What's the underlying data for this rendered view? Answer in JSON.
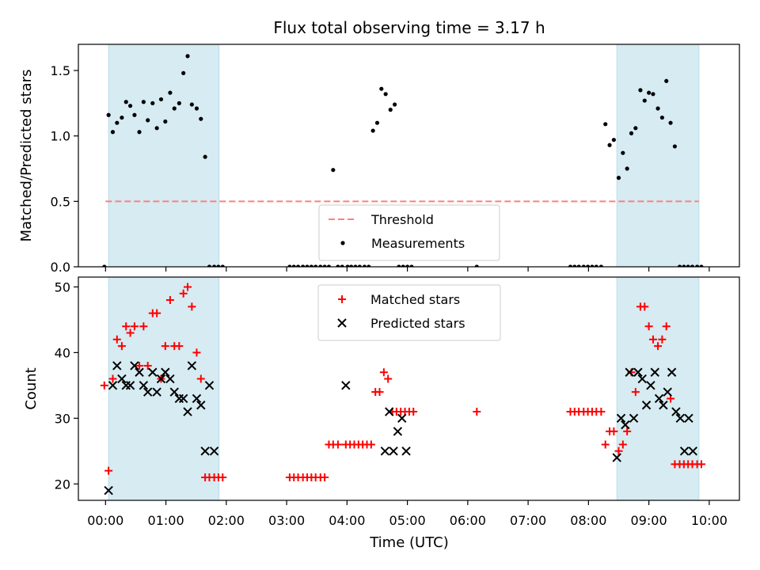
{
  "chart_data": {
    "title": "Flux total observing time = 3.17 h",
    "xlabel": "Time (UTC)",
    "x_ticks": [
      "00:00",
      "01:00",
      "02:00",
      "03:00",
      "04:00",
      "05:00",
      "06:00",
      "07:00",
      "08:00",
      "09:00",
      "10:00"
    ],
    "x_range_hours": [
      -0.45,
      10.5
    ],
    "shaded_intervals_hours": [
      [
        0.05,
        1.88
      ],
      [
        8.47,
        9.83
      ]
    ],
    "shade_color": "#add8e6",
    "panels": [
      {
        "type": "scatter",
        "ylabel": "Matched/Predicted stars",
        "ylim": [
          0,
          1.7
        ],
        "y_ticks": [
          "0.0",
          "0.5",
          "1.0",
          "1.5"
        ],
        "y_tick_values": [
          0,
          0.5,
          1.0,
          1.5
        ],
        "threshold": {
          "name": "Threshold",
          "value": 0.5,
          "x_start": 0.0,
          "x_end": 9.83,
          "color": "#ff7f7f"
        },
        "series": [
          {
            "name": "Measurements",
            "color": "#000000",
            "marker": "dot",
            "x": [
              -0.02,
              0.05,
              0.12,
              0.19,
              0.27,
              0.34,
              0.41,
              0.48,
              0.56,
              0.63,
              0.7,
              0.78,
              0.85,
              0.92,
              0.99,
              1.07,
              1.14,
              1.22,
              1.29,
              1.36,
              1.43,
              1.51,
              1.58,
              1.65,
              1.72,
              1.8,
              1.87,
              1.94,
              3.05,
              3.12,
              3.19,
              3.27,
              3.34,
              3.41,
              3.48,
              3.56,
              3.63,
              3.7,
              3.77,
              3.85,
              3.92,
              4.01,
              4.07,
              4.14,
              4.21,
              4.29,
              4.36,
              4.43,
              4.5,
              4.57,
              4.64,
              4.72,
              4.79,
              4.86,
              4.93,
              5.0,
              5.07,
              6.15,
              7.7,
              7.77,
              7.84,
              7.92,
              7.99,
              8.06,
              8.13,
              8.21,
              8.28,
              8.35,
              8.42,
              8.5,
              8.57,
              8.64,
              8.71,
              8.78,
              8.86,
              8.93,
              9.0,
              9.07,
              9.15,
              9.22,
              9.29,
              9.36,
              9.43,
              9.51,
              9.58,
              9.65,
              9.72,
              9.8,
              9.87
            ],
            "y": [
              0.0,
              1.16,
              1.03,
              1.1,
              1.14,
              1.26,
              1.23,
              1.16,
              1.03,
              1.26,
              1.12,
              1.25,
              1.06,
              1.28,
              1.11,
              1.33,
              1.21,
              1.25,
              1.48,
              1.61,
              1.24,
              1.21,
              1.13,
              0.84,
              0.0,
              0.0,
              0.0,
              0.0,
              0.0,
              0.0,
              0.0,
              0.0,
              0.0,
              0.0,
              0.0,
              0.0,
              0.0,
              0.0,
              0.74,
              0.0,
              0.0,
              0.0,
              0.0,
              0.0,
              0.0,
              0.0,
              0.0,
              1.04,
              1.1,
              1.36,
              1.32,
              1.2,
              1.24,
              0.0,
              0.0,
              0.0,
              0.0,
              0.0,
              0.0,
              0.0,
              0.0,
              0.0,
              0.0,
              0.0,
              0.0,
              0.0,
              1.09,
              0.93,
              0.97,
              0.68,
              0.87,
              0.75,
              1.02,
              1.06,
              1.35,
              1.27,
              1.33,
              1.32,
              1.21,
              1.14,
              1.42,
              1.1,
              0.92,
              0.0,
              0.0,
              0.0,
              0.0,
              0.0,
              0.0
            ]
          }
        ],
        "legend": [
          "Threshold",
          "Measurements"
        ],
        "legend_loc": "lower center"
      },
      {
        "type": "scatter",
        "ylabel": "Count",
        "ylim": [
          17.5,
          51.5
        ],
        "y_ticks": [
          "20",
          "30",
          "40",
          "50"
        ],
        "y_tick_values": [
          20,
          30,
          40,
          50
        ],
        "series": [
          {
            "name": "Matched stars",
            "color": "#ff0000",
            "marker": "plus",
            "x": [
              -0.02,
              0.05,
              0.12,
              0.19,
              0.27,
              0.34,
              0.41,
              0.48,
              0.56,
              0.63,
              0.7,
              0.78,
              0.85,
              0.92,
              0.99,
              1.07,
              1.14,
              1.22,
              1.29,
              1.36,
              1.43,
              1.51,
              1.58,
              1.65,
              1.72,
              1.8,
              1.87,
              1.94,
              3.05,
              3.12,
              3.19,
              3.27,
              3.34,
              3.41,
              3.48,
              3.56,
              3.63,
              3.7,
              3.77,
              3.85,
              3.98,
              4.05,
              4.12,
              4.19,
              4.26,
              4.33,
              4.4,
              4.47,
              4.54,
              4.61,
              4.68,
              4.75,
              4.82,
              4.89,
              4.96,
              5.03,
              5.1,
              6.15,
              7.7,
              7.77,
              7.84,
              7.92,
              7.99,
              8.06,
              8.13,
              8.21,
              8.28,
              8.35,
              8.42,
              8.5,
              8.57,
              8.64,
              8.71,
              8.78,
              8.86,
              8.93,
              9.0,
              9.07,
              9.15,
              9.22,
              9.29,
              9.36,
              9.43,
              9.51,
              9.58,
              9.65,
              9.72,
              9.8,
              9.87
            ],
            "y": [
              35,
              22,
              36,
              42,
              41,
              44,
              43,
              44,
              38,
              44,
              38,
              46,
              46,
              36,
              41,
              48,
              41,
              41,
              49,
              50,
              47,
              40,
              36,
              21,
              21,
              21,
              21,
              21,
              21,
              21,
              21,
              21,
              21,
              21,
              21,
              21,
              21,
              26,
              26,
              26,
              26,
              26,
              26,
              26,
              26,
              26,
              26,
              34,
              34,
              37,
              36,
              31,
              31,
              31,
              31,
              31,
              31,
              31,
              31,
              31,
              31,
              31,
              31,
              31,
              31,
              31,
              26,
              28,
              28,
              25,
              26,
              28,
              37,
              34,
              47,
              47,
              44,
              42,
              41,
              42,
              44,
              33,
              23,
              23,
              23,
              23,
              23,
              23,
              23
            ],
            "y_note": "read from chart"
          },
          {
            "name": "Predicted stars",
            "color": "#000000",
            "marker": "x",
            "x": [
              0.05,
              0.12,
              0.19,
              0.27,
              0.34,
              0.41,
              0.48,
              0.56,
              0.63,
              0.7,
              0.78,
              0.85,
              0.92,
              0.99,
              1.07,
              1.14,
              1.22,
              1.29,
              1.36,
              1.43,
              1.51,
              1.58,
              1.65,
              1.72,
              1.8,
              3.98,
              4.63,
              4.7,
              4.77,
              4.84,
              4.91,
              4.98,
              8.47,
              8.54,
              8.61,
              8.68,
              8.75,
              8.82,
              8.89,
              8.96,
              9.03,
              9.1,
              9.17,
              9.24,
              9.31,
              9.38,
              9.45,
              9.52,
              9.59,
              9.66,
              9.73
            ],
            "y": [
              19,
              35,
              38,
              36,
              35,
              35,
              38,
              37,
              35,
              34,
              37,
              34,
              36,
              37,
              36,
              34,
              33,
              33,
              31,
              38,
              33,
              32,
              25,
              35,
              25,
              35,
              25,
              31,
              25,
              28,
              30,
              25,
              24,
              30,
              29,
              37,
              30,
              37,
              36,
              32,
              35,
              37,
              33,
              32,
              34,
              37,
              31,
              30,
              25,
              30,
              25
            ]
          }
        ],
        "legend": [
          "Matched stars",
          "Predicted stars"
        ],
        "legend_loc": "upper center"
      }
    ]
  }
}
